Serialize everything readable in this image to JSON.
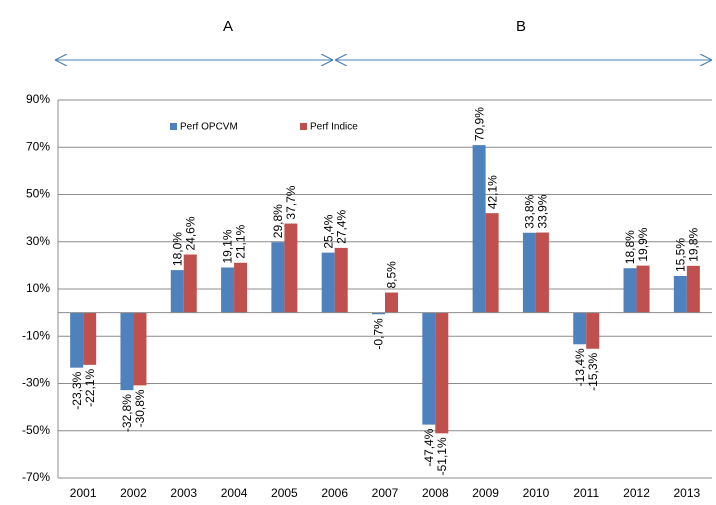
{
  "chart_data": {
    "type": "bar",
    "annotations": [
      "A",
      "B"
    ],
    "categories": [
      "2001",
      "2002",
      "2003",
      "2004",
      "2005",
      "2006",
      "2007",
      "2008",
      "2009",
      "2010",
      "2011",
      "2012",
      "2013"
    ],
    "series": [
      {
        "name": "Perf OPCVM",
        "color": "#4f81bd",
        "values": [
          -23.3,
          -32.8,
          18.0,
          19.1,
          29.8,
          25.4,
          -0.7,
          -47.4,
          70.9,
          33.8,
          -13.4,
          18.8,
          15.5
        ],
        "value_labels": [
          "-23,3%",
          "-32,8%",
          "18,0%",
          "19,1%",
          "29,8%",
          "25,4%",
          "-0,7%",
          "-47,4%",
          "70,9%",
          "33,8%",
          "-13,4%",
          "18,8%",
          "15,5%"
        ]
      },
      {
        "name": "Perf Indice",
        "color": "#c0504d",
        "values": [
          -22.1,
          -30.8,
          24.6,
          21.1,
          37.7,
          27.4,
          8.5,
          -51.1,
          42.1,
          33.9,
          -15.3,
          19.9,
          19.8
        ],
        "value_labels": [
          "-22,1%",
          "-30,8%",
          "24,6%",
          "21,1%",
          "37,7%",
          "27,4%",
          "8,5%",
          "-51,1%",
          "42,1%",
          "33,9%",
          "-15,3%",
          "19,9%",
          "19,8%"
        ]
      }
    ],
    "ylim": [
      -70,
      90
    ],
    "yticks": [
      {
        "value": -70,
        "label": "-70%"
      },
      {
        "value": -50,
        "label": "-50%"
      },
      {
        "value": -30,
        "label": "-30%"
      },
      {
        "value": -10,
        "label": "-10%"
      },
      {
        "value": 10,
        "label": "10%"
      },
      {
        "value": 30,
        "label": "30%"
      },
      {
        "value": 50,
        "label": "50%"
      },
      {
        "value": 70,
        "label": "70%"
      },
      {
        "value": 90,
        "label": "90%"
      }
    ],
    "grid": true,
    "legend": "top"
  }
}
